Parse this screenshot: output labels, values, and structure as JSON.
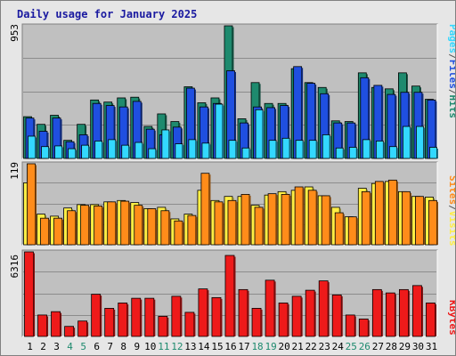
{
  "title": "Daily usage for January 2025",
  "colors": {
    "hits": "#1e8a6e",
    "files": "#1f4fe0",
    "pages": "#33d8ff",
    "visits": "#ffee44",
    "sites": "#ff8c1a",
    "kbytes": "#ee1a1a",
    "weekday": "#000000",
    "weekend": "#1e8a6e",
    "sep": "#555555"
  },
  "legend": {
    "top": [
      {
        "text": "Pages",
        "color": "#33d8ff"
      },
      {
        "text": "/",
        "color": "#555555"
      },
      {
        "text": "Files",
        "color": "#1f4fe0"
      },
      {
        "text": "/",
        "color": "#555555"
      },
      {
        "text": "Hits",
        "color": "#1e8a6e"
      }
    ],
    "middle": [
      {
        "text": "Sites",
        "color": "#ff8c1a"
      },
      {
        "text": "/",
        "color": "#555555"
      },
      {
        "text": "Visits",
        "color": "#ffee44"
      }
    ],
    "bottom": [
      {
        "text": "KBytes",
        "color": "#ee1a1a"
      }
    ]
  },
  "chart_data": [
    {
      "type": "bar",
      "panel": "hits-files-pages",
      "max_label": "953",
      "ylim": [
        0,
        953
      ],
      "categories": [
        "1",
        "2",
        "3",
        "4",
        "5",
        "6",
        "7",
        "8",
        "9",
        "10",
        "11",
        "12",
        "13",
        "14",
        "15",
        "16",
        "17",
        "18",
        "19",
        "20",
        "21",
        "22",
        "23",
        "24",
        "25",
        "26",
        "27",
        "28",
        "29",
        "30",
        "31"
      ],
      "weekend_days": [
        4,
        5,
        11,
        12,
        18,
        19,
        25,
        26
      ],
      "series": [
        {
          "name": "Hits",
          "values": [
            300,
            245,
            310,
            130,
            245,
            420,
            405,
            435,
            440,
            230,
            320,
            265,
            515,
            400,
            435,
            953,
            285,
            545,
            395,
            395,
            645,
            545,
            510,
            270,
            265,
            615,
            510,
            500,
            615,
            520,
            425
          ]
        },
        {
          "name": "Files",
          "values": [
            290,
            195,
            290,
            120,
            170,
            395,
            380,
            370,
            410,
            210,
            170,
            225,
            505,
            370,
            395,
            630,
            255,
            370,
            365,
            380,
            660,
            540,
            465,
            255,
            255,
            580,
            525,
            460,
            475,
            475,
            420
          ]
        },
        {
          "name": "Pages",
          "values": [
            160,
            85,
            90,
            70,
            95,
            125,
            135,
            95,
            115,
            70,
            205,
            105,
            135,
            110,
            390,
            130,
            75,
            350,
            130,
            145,
            130,
            130,
            170,
            75,
            80,
            135,
            125,
            85,
            230,
            230,
            80
          ]
        }
      ]
    },
    {
      "type": "bar",
      "panel": "sites-visits",
      "max_label": "119",
      "ylim": [
        0,
        119
      ],
      "categories": [
        "1",
        "2",
        "3",
        "4",
        "5",
        "6",
        "7",
        "8",
        "9",
        "10",
        "11",
        "12",
        "13",
        "14",
        "15",
        "16",
        "17",
        "18",
        "19",
        "20",
        "21",
        "22",
        "23",
        "24",
        "25",
        "26",
        "27",
        "28",
        "29",
        "30",
        "31"
      ],
      "weekend_days": [
        4,
        5,
        11,
        12,
        18,
        19,
        25,
        26
      ],
      "series": [
        {
          "name": "Visits",
          "values": [
            91,
            45,
            42,
            54,
            59,
            59,
            63,
            65,
            62,
            53,
            55,
            38,
            45,
            80,
            65,
            71,
            71,
            58,
            73,
            78,
            80,
            85,
            72,
            55,
            41,
            83,
            90,
            93,
            78,
            71,
            70
          ]
        },
        {
          "name": "Sites",
          "values": [
            119,
            39,
            39,
            50,
            58,
            57,
            63,
            64,
            58,
            53,
            50,
            35,
            43,
            105,
            63,
            65,
            74,
            55,
            75,
            74,
            85,
            80,
            72,
            47,
            41,
            78,
            93,
            95,
            78,
            71,
            65
          ]
        }
      ]
    },
    {
      "type": "bar",
      "panel": "kbytes",
      "max_label": "6316",
      "ylim": [
        0,
        6316
      ],
      "categories": [
        "1",
        "2",
        "3",
        "4",
        "5",
        "6",
        "7",
        "8",
        "9",
        "10",
        "11",
        "12",
        "13",
        "14",
        "15",
        "16",
        "17",
        "18",
        "19",
        "20",
        "21",
        "22",
        "23",
        "24",
        "25",
        "26",
        "27",
        "28",
        "29",
        "30",
        "31"
      ],
      "weekend_days": [
        4,
        5,
        11,
        12,
        18,
        19,
        25,
        26
      ],
      "series": [
        {
          "name": "KBytes",
          "values": [
            6316,
            1600,
            1850,
            750,
            1150,
            3150,
            2100,
            2500,
            2850,
            2850,
            1500,
            3000,
            1800,
            3550,
            2900,
            6050,
            3500,
            2100,
            4200,
            2500,
            3000,
            3450,
            4150,
            3100,
            1600,
            1300,
            3500,
            3250,
            3500,
            3800,
            2500
          ]
        }
      ]
    }
  ]
}
